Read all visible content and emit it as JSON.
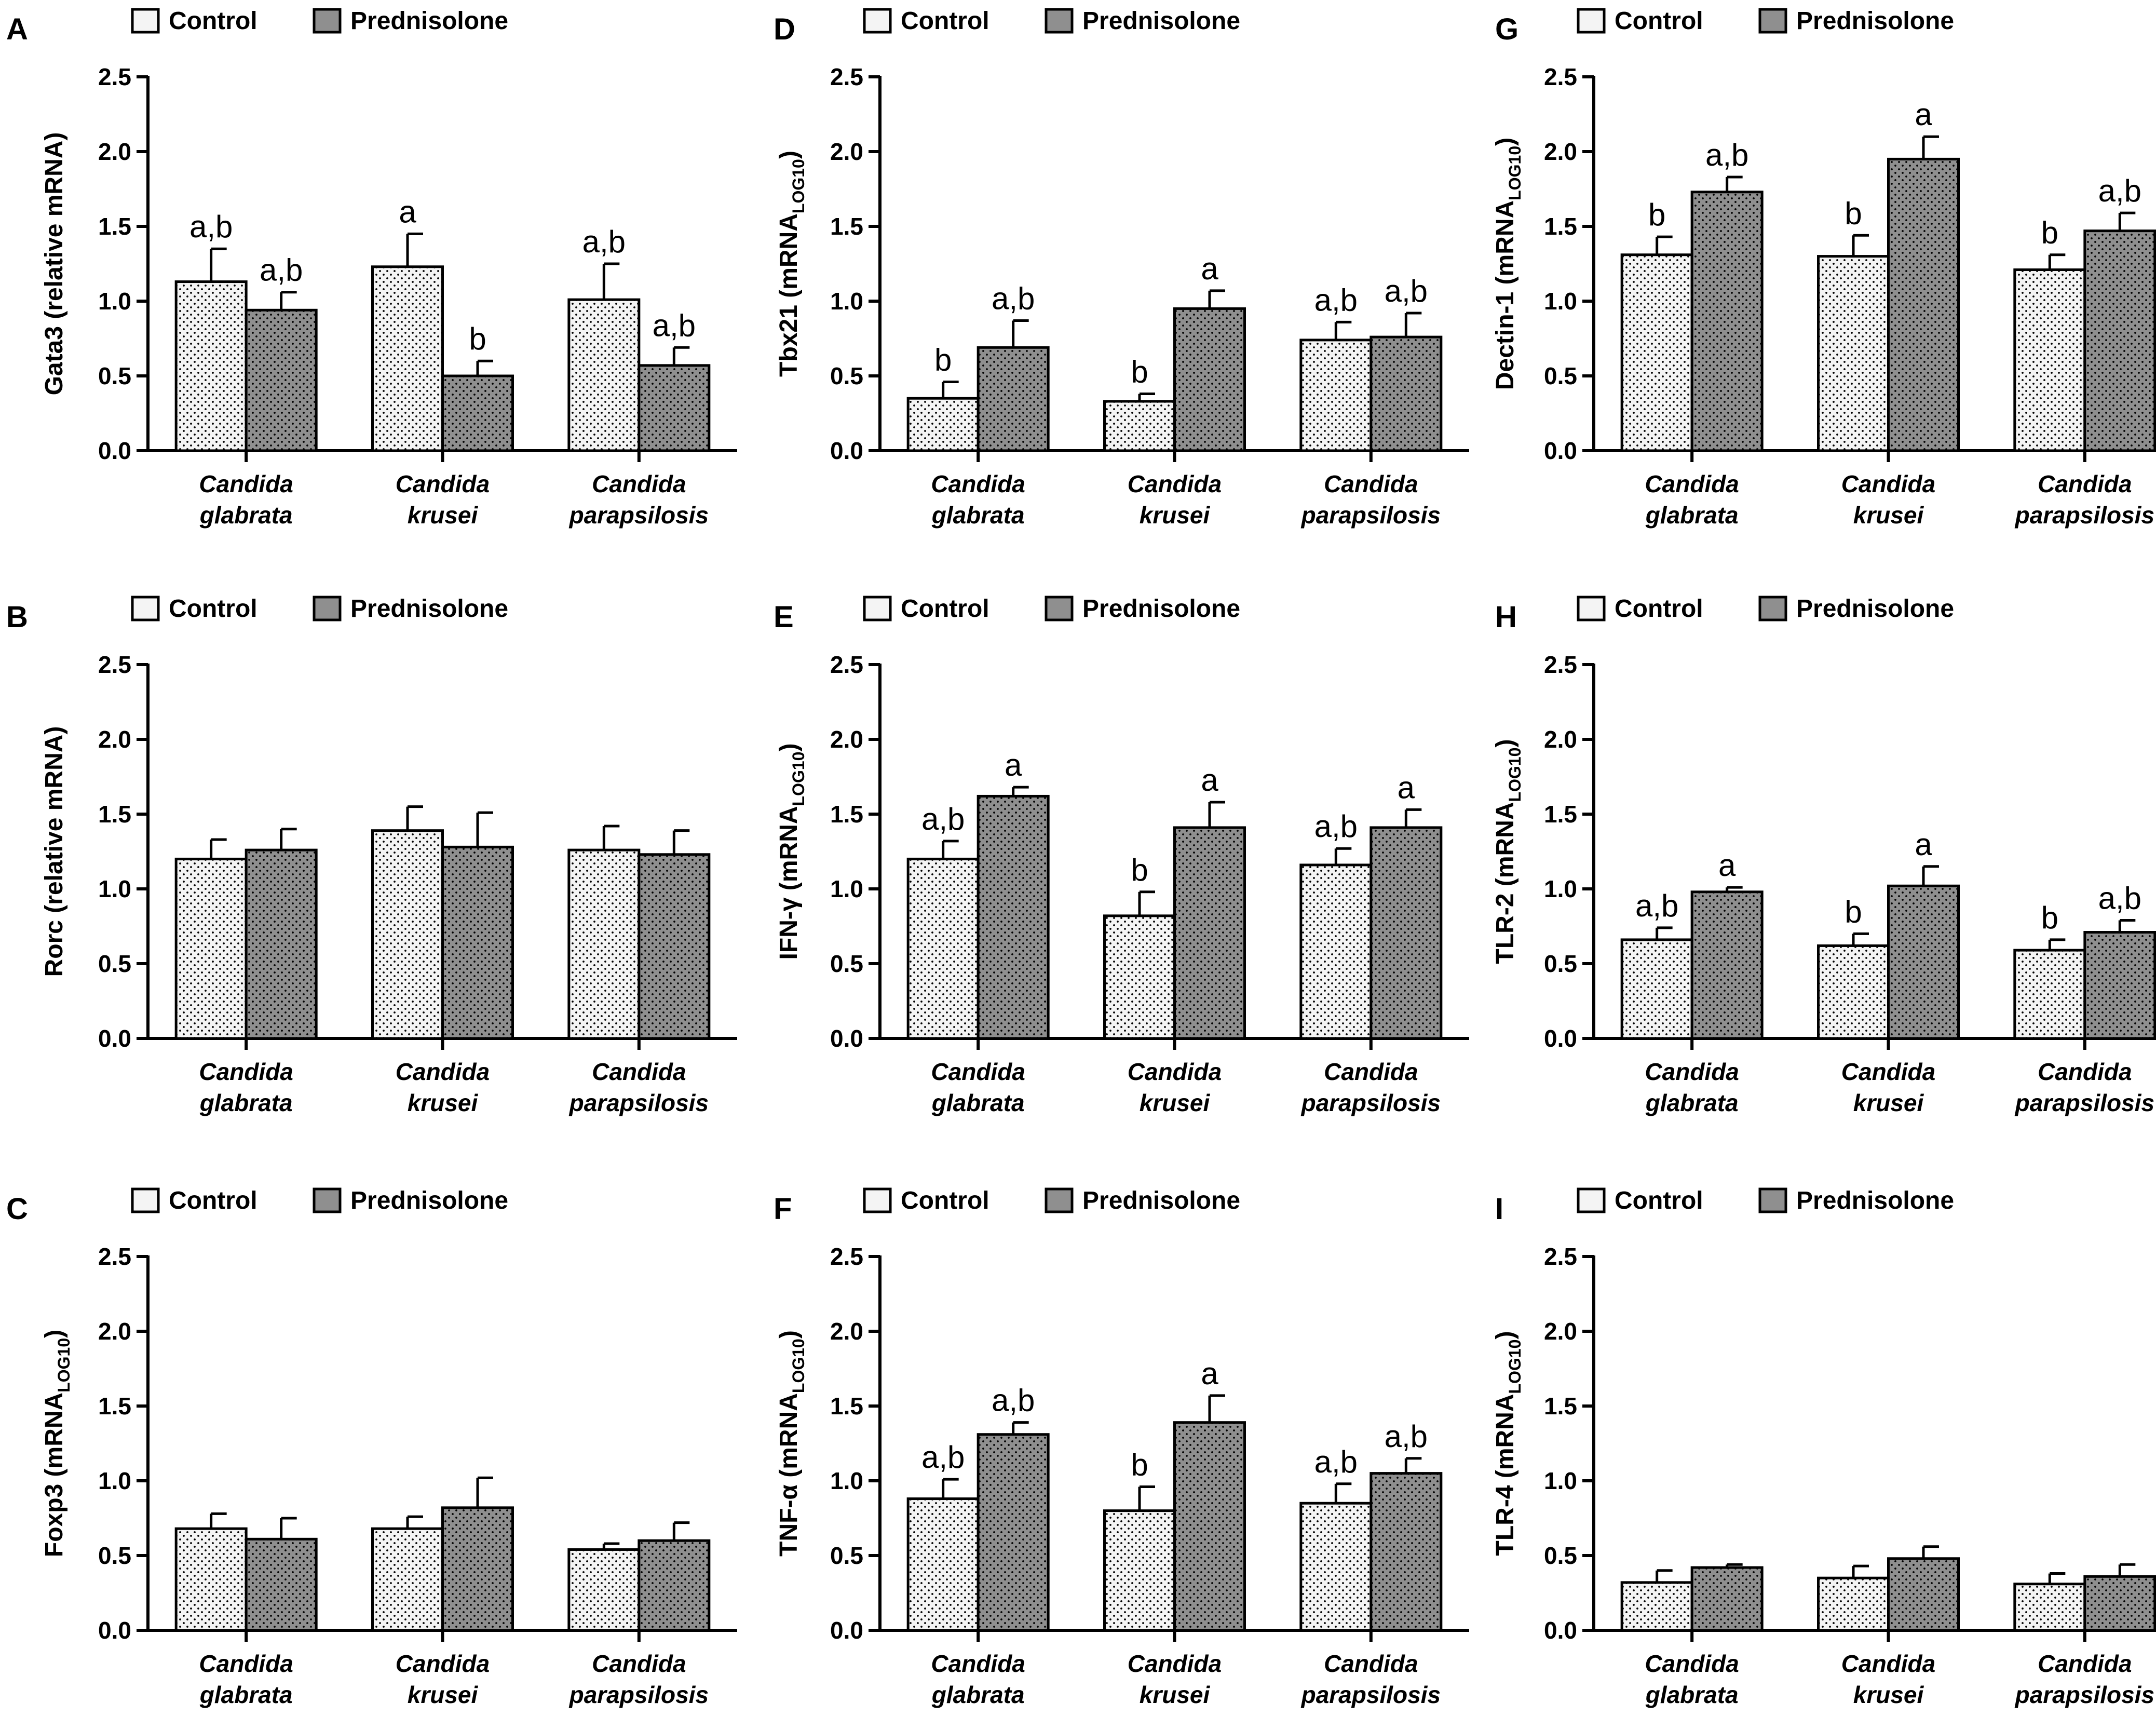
{
  "legend": {
    "control": "Control",
    "prednisolone": "Prednisolone"
  },
  "colors": {
    "control_fill": "#f4f4f4",
    "prednisolone_fill": "#8f8f8f",
    "dot": "#000000",
    "axis": "#000000"
  },
  "chart_data": [
    {
      "panel": "A",
      "type": "bar",
      "ylabel": "Gata3 (relative mRNA)",
      "ylabel_main": "Gata3 (relative mRNA)",
      "ylabel_sub": "",
      "ylabel_tail": "",
      "ylim": [
        0,
        2.5
      ],
      "yticks": [
        "0.0",
        "0.5",
        "1.0",
        "1.5",
        "2.0",
        "2.5"
      ],
      "categories": [
        [
          "Candida",
          "glabrata"
        ],
        [
          "Candida",
          "krusei"
        ],
        [
          "Candida",
          "parapsilosis"
        ]
      ],
      "series": [
        {
          "name": "Control",
          "values": [
            1.13,
            1.23,
            1.01
          ],
          "errors": [
            0.22,
            0.22,
            0.24
          ],
          "labels": [
            "a,b",
            "a",
            "a,b"
          ]
        },
        {
          "name": "Prednisolone",
          "values": [
            0.94,
            0.5,
            0.57
          ],
          "errors": [
            0.12,
            0.1,
            0.12
          ],
          "labels": [
            "a,b",
            "b",
            "a,b"
          ]
        }
      ]
    },
    {
      "panel": "B",
      "type": "bar",
      "ylabel": "Rorc (relative mRNA)",
      "ylabel_main": "Rorc (relative mRNA)",
      "ylabel_sub": "",
      "ylabel_tail": "",
      "ylim": [
        0,
        2.5
      ],
      "yticks": [
        "0.0",
        "0.5",
        "1.0",
        "1.5",
        "2.0",
        "2.5"
      ],
      "categories": [
        [
          "Candida",
          "glabrata"
        ],
        [
          "Candida",
          "krusei"
        ],
        [
          "Candida",
          "parapsilosis"
        ]
      ],
      "series": [
        {
          "name": "Control",
          "values": [
            1.2,
            1.39,
            1.26
          ],
          "errors": [
            0.13,
            0.16,
            0.16
          ],
          "labels": [
            "",
            "",
            ""
          ]
        },
        {
          "name": "Prednisolone",
          "values": [
            1.26,
            1.28,
            1.23
          ],
          "errors": [
            0.14,
            0.23,
            0.16
          ],
          "labels": [
            "",
            "",
            ""
          ]
        }
      ]
    },
    {
      "panel": "C",
      "type": "bar",
      "ylabel": "Foxp3 (mRNALOG10)",
      "ylabel_main": "Foxp3 (mRNA",
      "ylabel_sub": "LOG10",
      "ylabel_tail": ")",
      "ylim": [
        0,
        2.5
      ],
      "yticks": [
        "0.0",
        "0.5",
        "1.0",
        "1.5",
        "2.0",
        "2.5"
      ],
      "categories": [
        [
          "Candida",
          "glabrata"
        ],
        [
          "Candida",
          "krusei"
        ],
        [
          "Candida",
          "parapsilosis"
        ]
      ],
      "series": [
        {
          "name": "Control",
          "values": [
            0.68,
            0.68,
            0.54
          ],
          "errors": [
            0.1,
            0.08,
            0.04
          ],
          "labels": [
            "",
            "",
            ""
          ]
        },
        {
          "name": "Prednisolone",
          "values": [
            0.61,
            0.82,
            0.6
          ],
          "errors": [
            0.14,
            0.2,
            0.12
          ],
          "labels": [
            "",
            "",
            ""
          ]
        }
      ]
    },
    {
      "panel": "D",
      "type": "bar",
      "ylabel": "Tbx21 (mRNALOG10)",
      "ylabel_main": "Tbx21 (mRNA",
      "ylabel_sub": "LOG10",
      "ylabel_tail": ")",
      "ylim": [
        0,
        2.5
      ],
      "yticks": [
        "0.0",
        "0.5",
        "1.0",
        "1.5",
        "2.0",
        "2.5"
      ],
      "categories": [
        [
          "Candida",
          "glabrata"
        ],
        [
          "Candida",
          "krusei"
        ],
        [
          "Candida",
          "parapsilosis"
        ]
      ],
      "series": [
        {
          "name": "Control",
          "values": [
            0.35,
            0.33,
            0.74
          ],
          "errors": [
            0.11,
            0.05,
            0.12
          ],
          "labels": [
            "b",
            "b",
            "a,b"
          ]
        },
        {
          "name": "Prednisolone",
          "values": [
            0.69,
            0.95,
            0.76
          ],
          "errors": [
            0.18,
            0.12,
            0.16
          ],
          "labels": [
            "a,b",
            "a",
            "a,b"
          ]
        }
      ]
    },
    {
      "panel": "E",
      "type": "bar",
      "ylabel": "IFN-γ (mRNALOG10)",
      "ylabel_main": "IFN-γ (mRNA",
      "ylabel_sub": "LOG10",
      "ylabel_tail": ")",
      "ylim": [
        0,
        2.5
      ],
      "yticks": [
        "0.0",
        "0.5",
        "1.0",
        "1.5",
        "2.0",
        "2.5"
      ],
      "categories": [
        [
          "Candida",
          "glabrata"
        ],
        [
          "Candida",
          "krusei"
        ],
        [
          "Candida",
          "parapsilosis"
        ]
      ],
      "series": [
        {
          "name": "Control",
          "values": [
            1.2,
            0.82,
            1.16
          ],
          "errors": [
            0.12,
            0.16,
            0.11
          ],
          "labels": [
            "a,b",
            "b",
            "a,b"
          ]
        },
        {
          "name": "Prednisolone",
          "values": [
            1.62,
            1.41,
            1.41
          ],
          "errors": [
            0.06,
            0.17,
            0.12
          ],
          "labels": [
            "a",
            "a",
            "a"
          ]
        }
      ]
    },
    {
      "panel": "F",
      "type": "bar",
      "ylabel": "TNF-α (mRNALOG10)",
      "ylabel_main": "TNF-α (mRNA",
      "ylabel_sub": "LOG10",
      "ylabel_tail": ")",
      "ylim": [
        0,
        2.5
      ],
      "yticks": [
        "0.0",
        "0.5",
        "1.0",
        "1.5",
        "2.0",
        "2.5"
      ],
      "categories": [
        [
          "Candida",
          "glabrata"
        ],
        [
          "Candida",
          "krusei"
        ],
        [
          "Candida",
          "parapsilosis"
        ]
      ],
      "series": [
        {
          "name": "Control",
          "values": [
            0.88,
            0.8,
            0.85
          ],
          "errors": [
            0.13,
            0.16,
            0.13
          ],
          "labels": [
            "a,b",
            "b",
            "a,b"
          ]
        },
        {
          "name": "Prednisolone",
          "values": [
            1.31,
            1.39,
            1.05
          ],
          "errors": [
            0.08,
            0.18,
            0.1
          ],
          "labels": [
            "a,b",
            "a",
            "a,b"
          ]
        }
      ]
    },
    {
      "panel": "G",
      "type": "bar",
      "ylabel": "Dectin-1 (mRNALOG10)",
      "ylabel_main": "Dectin-1 (mRNA",
      "ylabel_sub": "LOG10",
      "ylabel_tail": ")",
      "ylim": [
        0,
        2.5
      ],
      "yticks": [
        "0.0",
        "0.5",
        "1.0",
        "1.5",
        "2.0",
        "2.5"
      ],
      "categories": [
        [
          "Candida",
          "glabrata"
        ],
        [
          "Candida",
          "krusei"
        ],
        [
          "Candida",
          "parapsilosis"
        ]
      ],
      "series": [
        {
          "name": "Control",
          "values": [
            1.31,
            1.3,
            1.21
          ],
          "errors": [
            0.12,
            0.14,
            0.1
          ],
          "labels": [
            "b",
            "b",
            "b"
          ]
        },
        {
          "name": "Prednisolone",
          "values": [
            1.73,
            1.95,
            1.47
          ],
          "errors": [
            0.1,
            0.15,
            0.12
          ],
          "labels": [
            "a,b",
            "a",
            "a,b"
          ]
        }
      ]
    },
    {
      "panel": "H",
      "type": "bar",
      "ylabel": "TLR-2 (mRNALOG10)",
      "ylabel_main": "TLR-2 (mRNA",
      "ylabel_sub": "LOG10",
      "ylabel_tail": ")",
      "ylim": [
        0,
        2.5
      ],
      "yticks": [
        "0.0",
        "0.5",
        "1.0",
        "1.5",
        "2.0",
        "2.5"
      ],
      "categories": [
        [
          "Candida",
          "glabrata"
        ],
        [
          "Candida",
          "krusei"
        ],
        [
          "Candida",
          "parapsilosis"
        ]
      ],
      "series": [
        {
          "name": "Control",
          "values": [
            0.66,
            0.62,
            0.59
          ],
          "errors": [
            0.08,
            0.08,
            0.07
          ],
          "labels": [
            "a,b",
            "b",
            "b"
          ]
        },
        {
          "name": "Prednisolone",
          "values": [
            0.98,
            1.02,
            0.71
          ],
          "errors": [
            0.03,
            0.13,
            0.08
          ],
          "labels": [
            "a",
            "a",
            "a,b"
          ]
        }
      ]
    },
    {
      "panel": "I",
      "type": "bar",
      "ylabel": "TLR-4 (mRNALOG10)",
      "ylabel_main": "TLR-4 (mRNA",
      "ylabel_sub": "LOG10",
      "ylabel_tail": ")",
      "ylim": [
        0,
        2.5
      ],
      "yticks": [
        "0.0",
        "0.5",
        "1.0",
        "1.5",
        "2.0",
        "2.5"
      ],
      "categories": [
        [
          "Candida",
          "glabrata"
        ],
        [
          "Candida",
          "krusei"
        ],
        [
          "Candida",
          "parapsilosis"
        ]
      ],
      "series": [
        {
          "name": "Control",
          "values": [
            0.32,
            0.35,
            0.31
          ],
          "errors": [
            0.08,
            0.08,
            0.07
          ],
          "labels": [
            "",
            "",
            ""
          ]
        },
        {
          "name": "Prednisolone",
          "values": [
            0.42,
            0.48,
            0.36
          ],
          "errors": [
            0.02,
            0.08,
            0.08
          ],
          "labels": [
            "",
            "",
            ""
          ]
        }
      ]
    }
  ]
}
